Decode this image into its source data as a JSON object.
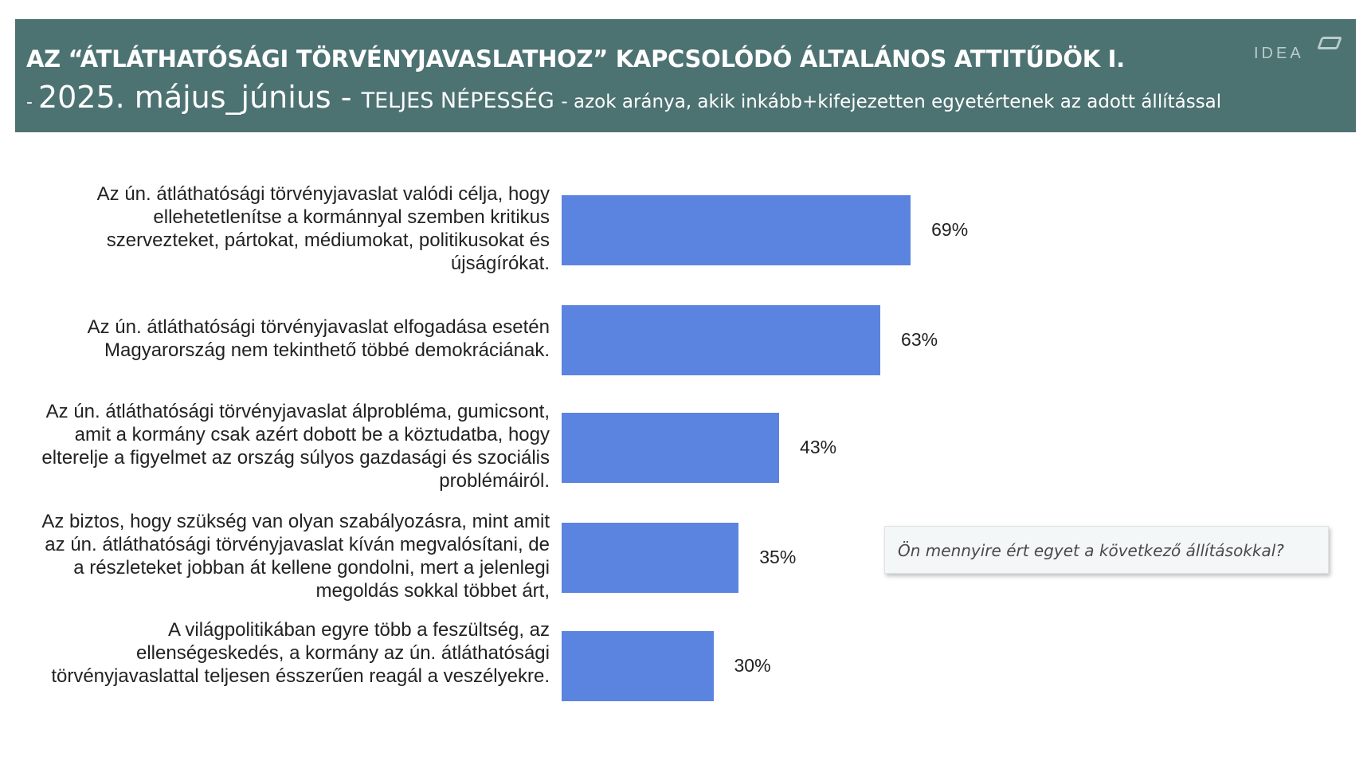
{
  "header": {
    "title": "AZ “ÁTLÁTHATÓSÁGI TÖRVÉNYJAVASLATHOZ” KAPCSOLÓDÓ ÁLTALÁNOS ATTITŰDÖK I.",
    "subtitle_dash": "- ",
    "subtitle_date": "2025. május_június - ",
    "subtitle_population": "TELJES NÉPESSÉG ",
    "subtitle_description": " - azok aránya, akik inkább+kifejezetten egyetértenek az adott állítással",
    "logo_text": "IDEA"
  },
  "question_box": {
    "text": "Ön mennyire ért egyet a következő állításokkal?"
  },
  "colors": {
    "header_bg": "#4d7272",
    "bar": "#5b84e0"
  },
  "chart_data": {
    "type": "bar",
    "orientation": "horizontal",
    "title": "",
    "xlabel": "",
    "ylabel": "",
    "xlim": [
      0,
      100
    ],
    "grid": false,
    "categories": [
      "Az ún. átláthatósági törvényjavaslat valódi célja, hogy ellehetetlenítse a kormánnyal szemben kritikus szervezteket, pártokat, médiumokat, politikusokat és újságírókat.",
      "Az ún. átláthatósági törvényjavaslat elfogadása esetén Magyarország nem tekinthető többé demokráciának.",
      "Az ún. átláthatósági törvényjavaslat álprobléma, gumicsont, amit a kormány csak azért dobott be a köztudatba, hogy elterelje a figyelmet az ország súlyos gazdasági és szociális problémáiról.",
      "Az biztos, hogy szükség van olyan szabályozásra, mint amit az ún. átláthatósági törvényjavaslat kíván megvalósítani, de a részleteket jobban át kellene gondolni, mert a jelenlegi megoldás sokkal többet árt,",
      "A világpolitikában egyre több a feszültség, az ellenségeskedés, a kormány az ún. átláthatósági törvényjavaslattal teljesen ésszerűen reagál a veszélyekre."
    ],
    "values": [
      69,
      63,
      43,
      35,
      30
    ],
    "value_labels": [
      "69%",
      "63%",
      "43%",
      "35%",
      "30%"
    ]
  }
}
